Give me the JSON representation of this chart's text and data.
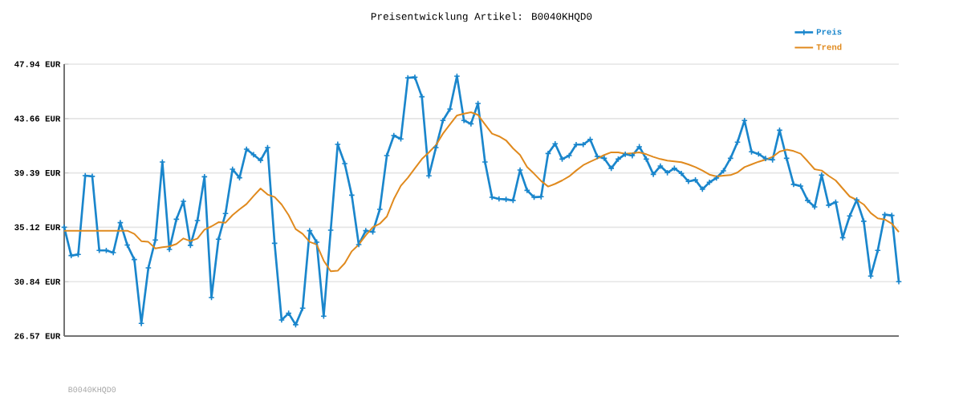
{
  "chart_data": {
    "type": "line",
    "title": "Preisentwicklung Artikel: B0040KHQD0",
    "categories": [
      null,
      null,
      null,
      null,
      null,
      null,
      null,
      null,
      null,
      null,
      null,
      null,
      null,
      null,
      null,
      null,
      null,
      null,
      null,
      null,
      null,
      null,
      null,
      null,
      null,
      null,
      null,
      null,
      null,
      null,
      null,
      null,
      null,
      null,
      null,
      null,
      null,
      null,
      null,
      null,
      null,
      null,
      null,
      null,
      null,
      null,
      null,
      null,
      null,
      null,
      null,
      null,
      null,
      null,
      null,
      null,
      null,
      null,
      null,
      null,
      null,
      null,
      null,
      null,
      null,
      null,
      null,
      null,
      null,
      null,
      null,
      null,
      null,
      null,
      null,
      null,
      null,
      null,
      null,
      null,
      null,
      null,
      null,
      null,
      null,
      null,
      null,
      null,
      null,
      null,
      null,
      null,
      null,
      null,
      null,
      null,
      null,
      null,
      null,
      null,
      null,
      null,
      null,
      null,
      null,
      null,
      null,
      null,
      null,
      null,
      null,
      null,
      null,
      null,
      null,
      null,
      null,
      null,
      null,
      null
    ],
    "series": [
      {
        "name": "Preis",
        "color": "#1a86cc",
        "marker": "cross",
        "values": [
          35.12,
          32.9,
          32.98,
          39.18,
          39.12,
          33.3,
          33.3,
          33.13,
          35.48,
          33.72,
          32.58,
          27.56,
          31.93,
          34.12,
          40.25,
          33.38,
          35.75,
          37.16,
          33.7,
          35.65,
          39.09,
          29.6,
          34.18,
          36.2,
          39.68,
          39.01,
          41.26,
          40.82,
          40.38,
          41.38,
          33.86,
          27.83,
          28.36,
          27.46,
          28.76,
          34.85,
          33.95,
          28.13,
          34.89,
          41.64,
          40.12,
          37.64,
          33.76,
          34.85,
          34.75,
          36.53,
          40.75,
          42.33,
          42.06,
          46.87,
          46.91,
          45.38,
          39.16,
          41.38,
          43.51,
          44.41,
          46.99,
          43.51,
          43.25,
          44.85,
          40.25,
          37.48,
          37.35,
          37.31,
          37.23,
          39.62,
          38.02,
          37.48,
          37.52,
          40.92,
          41.68,
          40.48,
          40.75,
          41.62,
          41.62,
          42.02,
          40.69,
          40.54,
          39.75,
          40.48,
          40.86,
          40.75,
          41.45,
          40.48,
          39.28,
          39.93,
          39.41,
          39.75,
          39.35,
          38.72,
          38.84,
          38.11,
          38.65,
          38.99,
          39.56,
          40.54,
          41.81,
          43.51,
          41.05,
          40.88,
          40.52,
          40.42,
          42.75,
          40.54,
          38.49,
          38.36,
          37.23,
          36.72,
          39.22,
          36.85,
          37.1,
          34.3,
          36.01,
          37.27,
          35.59,
          31.28,
          33.3,
          36.11,
          36.05,
          30.84
        ]
      },
      {
        "name": "Trend",
        "color": "#e08a1e",
        "marker": "none",
        "values": [
          34.85,
          34.85,
          34.85,
          34.85,
          34.85,
          34.85,
          34.85,
          34.85,
          34.85,
          34.85,
          34.6,
          34.03,
          33.97,
          33.46,
          33.55,
          33.61,
          33.8,
          34.24,
          34.03,
          34.24,
          34.93,
          35.19,
          35.52,
          35.48,
          36.07,
          36.53,
          36.95,
          37.58,
          38.17,
          37.69,
          37.5,
          36.91,
          36.07,
          34.98,
          34.6,
          33.97,
          33.76,
          32.5,
          31.66,
          31.7,
          32.29,
          33.23,
          33.76,
          34.49,
          35.12,
          35.4,
          35.96,
          37.33,
          38.38,
          39.01,
          39.75,
          40.48,
          41.01,
          41.57,
          42.48,
          43.21,
          43.91,
          44.05,
          44.16,
          43.95,
          43.21,
          42.48,
          42.27,
          41.95,
          41.32,
          40.8,
          39.85,
          39.33,
          38.76,
          38.32,
          38.53,
          38.8,
          39.12,
          39.58,
          40.0,
          40.27,
          40.52,
          40.8,
          41.01,
          41.01,
          40.9,
          40.94,
          41.01,
          40.86,
          40.65,
          40.48,
          40.36,
          40.29,
          40.23,
          40.06,
          39.85,
          39.58,
          39.26,
          39.12,
          39.18,
          39.22,
          39.43,
          39.85,
          40.06,
          40.27,
          40.44,
          40.65,
          41.07,
          41.22,
          41.11,
          40.9,
          40.31,
          39.68,
          39.58,
          39.16,
          38.8,
          38.17,
          37.54,
          37.27,
          36.91,
          36.24,
          35.82,
          35.73,
          35.4,
          34.75
        ]
      }
    ],
    "ylim": [
      26.57,
      47.94
    ],
    "yticks": [
      {
        "value": 26.57,
        "label": "26.57 EUR"
      },
      {
        "value": 30.84,
        "label": "30.84 EUR"
      },
      {
        "value": 35.12,
        "label": "35.12 EUR"
      },
      {
        "value": 39.39,
        "label": "39.39 EUR"
      },
      {
        "value": 43.66,
        "label": "43.66 EUR"
      },
      {
        "value": 47.94,
        "label": "47.94 EUR"
      }
    ],
    "grid": "y",
    "legend": "top right",
    "annotations": [
      "B0040KHQD0"
    ]
  }
}
